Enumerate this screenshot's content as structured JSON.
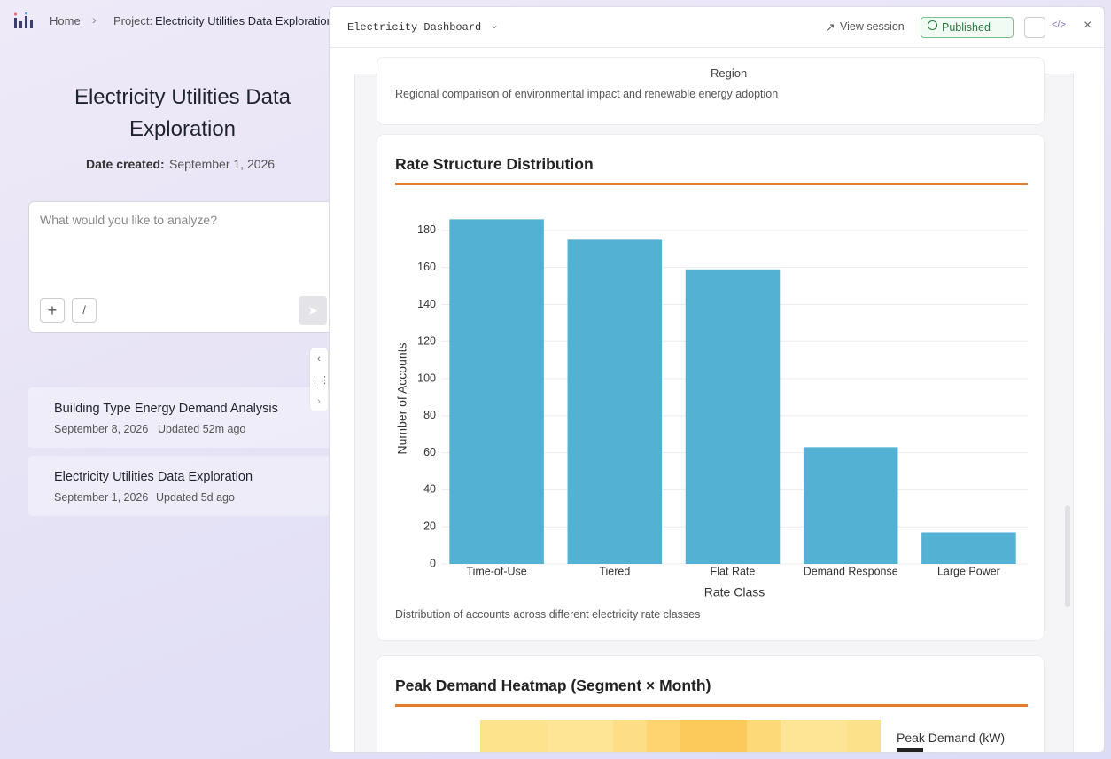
{
  "nav": {
    "home": "Home",
    "project_prefix": "Project:",
    "project": "Electricity Utilities Data Exploration"
  },
  "left": {
    "title": "Electricity Utilities Data Exploration",
    "date_label": "Date created:",
    "date": "September 1, 2026",
    "placeholder": "What would you like to analyze?",
    "slash_button": "/"
  },
  "sessions": [
    {
      "title": "Building Type Energy Demand Analysis",
      "date": "September 8, 2026",
      "updated": "Updated 52m ago"
    },
    {
      "title": "Electricity Utilities Data Exploration",
      "date": "September 1, 2026",
      "updated": "Updated 5d ago"
    }
  ],
  "panel": {
    "title": "Electricity Dashboard",
    "view_session": "View session",
    "status": "Published"
  },
  "previous_card": {
    "axis_label": "Region",
    "description": "Regional comparison of environmental impact and renewable energy adoption"
  },
  "chart_data": {
    "type": "bar",
    "title": "Rate Structure Distribution",
    "xlabel": "Rate Class",
    "ylabel": "Number of Accounts",
    "categories": [
      "Time-of-Use",
      "Tiered",
      "Flat Rate",
      "Demand Response",
      "Large Power"
    ],
    "values": [
      186,
      175,
      159,
      63,
      17
    ],
    "color": "#53b2d3",
    "ylim": [
      0,
      190
    ],
    "yticks": [
      0,
      20,
      40,
      60,
      80,
      100,
      120,
      140,
      160,
      180
    ],
    "grid": true,
    "description": "Distribution of accounts across different electricity rate classes"
  },
  "heatmap": {
    "title": "Peak Demand Heatmap (Segment × Month)",
    "colorbar_title": "Peak Demand (kW)"
  }
}
